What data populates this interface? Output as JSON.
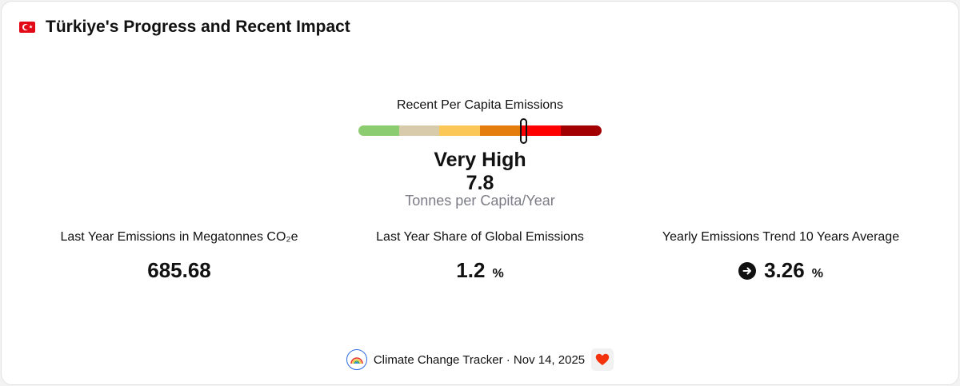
{
  "header": {
    "flag_icon": "turkey-flag-icon",
    "title": "Türkiye's Progress and Recent Impact"
  },
  "gauge": {
    "label": "Recent Per Capita Emissions",
    "segment_colors": [
      "#8ccc70",
      "#d8cbab",
      "#fbc858",
      "#e57d0d",
      "#ff0000",
      "#a20000"
    ],
    "marker_position_fraction": 0.68,
    "level": "Very High",
    "value": "7.8",
    "unit": "Tonnes per Capita/Year"
  },
  "stats": [
    {
      "label": "Last Year Emissions in Megatonnes CO₂e",
      "value": "685.68",
      "suffix": ""
    },
    {
      "label": "Last Year Share of Global Emissions",
      "value": "1.2",
      "suffix": "%"
    },
    {
      "label": "Yearly Emissions Trend 10 Years Average",
      "value": "3.26",
      "suffix": "%",
      "icon": "arrow-right-icon"
    }
  ],
  "footer": {
    "logo_icon": "rainbow-logo-icon",
    "text": "Climate Change Tracker · Nov 14, 2025",
    "heart_icon": "heart-icon"
  }
}
